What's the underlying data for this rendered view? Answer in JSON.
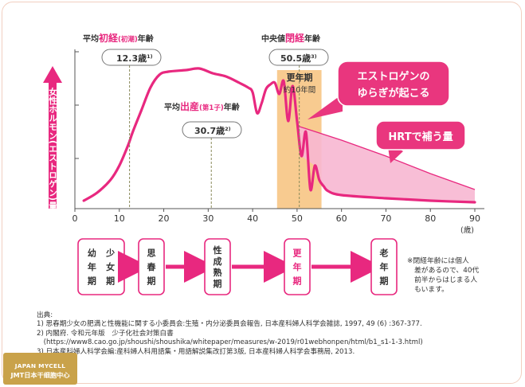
{
  "chart_data": {
    "type": "line",
    "ylabel": "女性ホルモン(エストロゲン)量",
    "xlabel": "(歳)",
    "x_ticks": [
      0,
      10,
      20,
      30,
      40,
      50,
      60,
      70,
      80,
      90
    ],
    "xlim": [
      0,
      90
    ],
    "ylim": [
      0,
      100
    ],
    "grid": "y-major-ticks-only",
    "estrogen_curve": {
      "x": [
        2,
        5,
        8,
        10,
        12,
        13,
        15,
        17,
        19,
        21,
        25,
        28,
        31,
        34,
        37,
        39,
        40,
        41,
        42,
        43,
        44,
        45,
        46,
        47,
        48,
        49,
        50,
        51,
        52,
        53,
        54,
        55,
        56,
        57,
        60,
        70,
        80,
        90
      ],
      "y": [
        5,
        10,
        18,
        27,
        40,
        48,
        62,
        76,
        84,
        86,
        87,
        88,
        85,
        83,
        79,
        76,
        73,
        60,
        66,
        75,
        78,
        79,
        72,
        80,
        55,
        77,
        55,
        33,
        48,
        12,
        27,
        18,
        14,
        11,
        8.5,
        6.5,
        5,
        4
      ]
    },
    "hrt_supplement_upper": {
      "x": [
        50,
        60,
        70,
        80,
        90
      ],
      "y": [
        52,
        43,
        33,
        22,
        12
      ]
    },
    "annotations": {
      "menarche": {
        "label_pre": "平均",
        "label_em": "初経",
        "label_paren": "(初潮)",
        "label_post": "年齢",
        "value": "12.3歳",
        "sup": "1)",
        "x": 12.3
      },
      "first_birth": {
        "label_pre": "平均",
        "label_em": "出産",
        "label_paren": "(第1子)",
        "label_post": "年齢",
        "value": "30.7歳",
        "sup": "2)",
        "x": 30.7
      },
      "menopause": {
        "label_pre": "中央値",
        "label_em": "閉経",
        "label_post": "年齢",
        "value": "50.5歳",
        "sup": "3)",
        "x": 50.5
      },
      "climacteric_band": {
        "label1": "更年期",
        "label2": "約10年間",
        "x_range": [
          45.5,
          55.5
        ]
      },
      "fluctuation_callout": {
        "line1": "エストロゲンの",
        "line2": "ゆらぎが起こる"
      },
      "hrt_callout": {
        "text": "HRTで補う量"
      }
    },
    "life_stages": [
      {
        "name": "少女期・幼年期",
        "col1": "幼年期",
        "col2": "少女期",
        "highlight": false
      },
      {
        "name": "思春期",
        "col1": "思春期",
        "highlight": false
      },
      {
        "name": "性成熟期",
        "col1": "性成熟期",
        "highlight": false
      },
      {
        "name": "更年期",
        "col1": "更年期",
        "highlight": true
      },
      {
        "name": "老年期",
        "col1": "老年期",
        "highlight": false
      }
    ],
    "side_note": [
      "※閉経年齢には個人",
      "差があるので、40代",
      "前半からはじまる人",
      "もいます。"
    ]
  },
  "sources": {
    "heading": "出典:",
    "lines": [
      "1) 思春期少女の肥満と性機能に関する小委員会:生殖・内分泌委員会報告, 日本産科婦人科学会雑誌, 1997, 49 (6) :367-377.",
      "2) 内閣府. 令和元年版　少子化社会対策白書",
      "　(https://www8.cao.go.jp/shoushi/shoushika/whitepaper/measures/w-2019/r01webhonpen/html/b1_s1-1-3.html)",
      "3) 日本産科婦人科学会編:産科婦人科用語集・用語解説集改訂第3版, 日本産科婦人科学会事務局, 2013."
    ]
  },
  "logo": {
    "en": "JAPAN MYCELL",
    "jp": "JMT日本干细胞中心"
  },
  "colors": {
    "pink": "#e8287f",
    "pink_light": "#f7b7d2",
    "orange": "#f7c27c",
    "callout": "#e9367e"
  }
}
